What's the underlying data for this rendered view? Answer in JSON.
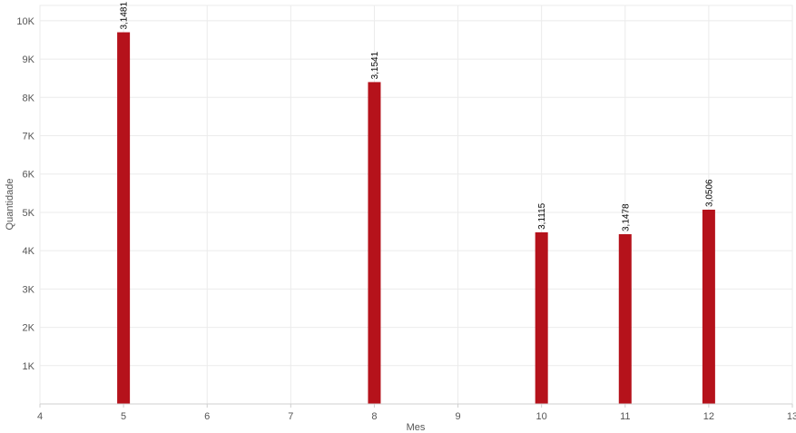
{
  "chart_data": {
    "type": "bar",
    "xlabel": "Mes",
    "ylabel": "Quantidade",
    "xlim": [
      4,
      13
    ],
    "ylim": [
      0,
      10400
    ],
    "x_ticks": [
      4,
      5,
      6,
      7,
      8,
      9,
      10,
      11,
      12,
      13
    ],
    "x_tick_labels": [
      "4",
      "5",
      "6",
      "7",
      "8",
      "9",
      "10",
      "11",
      "12",
      "13"
    ],
    "y_ticks": [
      1000,
      2000,
      3000,
      4000,
      5000,
      6000,
      7000,
      8000,
      9000,
      10000
    ],
    "y_tick_labels": [
      "1K",
      "2K",
      "3K",
      "4K",
      "5K",
      "6K",
      "7K",
      "8K",
      "9K",
      "10K"
    ],
    "grid": true,
    "bar_color": "#b5121b",
    "points": [
      {
        "x": 5,
        "y": 9700,
        "label": "3,1481"
      },
      {
        "x": 8,
        "y": 8400,
        "label": "3,1541"
      },
      {
        "x": 10,
        "y": 4480,
        "label": "3,1115"
      },
      {
        "x": 11,
        "y": 4430,
        "label": "3,1478"
      },
      {
        "x": 12,
        "y": 5070,
        "label": "3,0506"
      }
    ]
  }
}
